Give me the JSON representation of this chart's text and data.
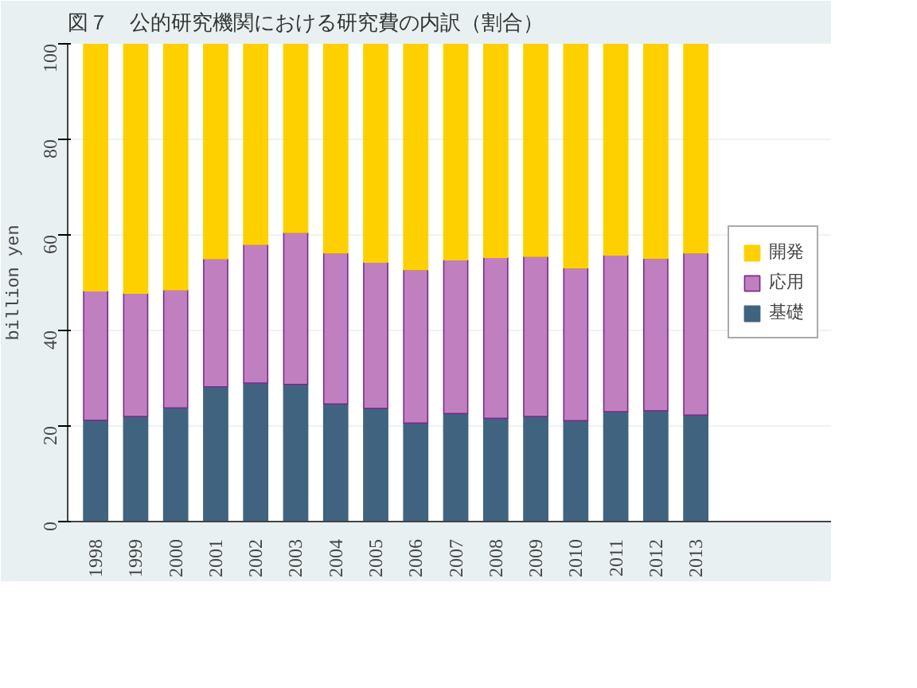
{
  "chart_data": {
    "type": "bar",
    "stacked": true,
    "title": "図７　公的研究機関における研究費の内訳（割合）",
    "ylabel": "billion yen",
    "categories": [
      "1998",
      "1999",
      "2000",
      "2001",
      "2002",
      "2003",
      "2004",
      "2005",
      "2006",
      "2007",
      "2008",
      "2009",
      "2010",
      "2011",
      "2012",
      "2013"
    ],
    "series": [
      {
        "name": "基礎",
        "color": "#406480",
        "values": [
          21.2,
          22.0,
          23.8,
          28.2,
          29.0,
          28.7,
          24.6,
          23.7,
          20.6,
          22.6,
          21.6,
          22.0,
          21.1,
          23.0,
          23.2,
          22.3
        ]
      },
      {
        "name": "応用",
        "color": "#c080c0",
        "values": [
          27.1,
          25.8,
          24.7,
          26.8,
          29.0,
          31.8,
          31.6,
          30.6,
          32.1,
          32.2,
          33.7,
          33.5,
          32.0,
          32.8,
          31.9,
          33.9
        ]
      },
      {
        "name": "開発",
        "color": "#ffd000",
        "values": [
          51.7,
          52.2,
          51.5,
          45.0,
          42.0,
          39.5,
          43.8,
          45.7,
          47.3,
          45.2,
          44.7,
          44.5,
          46.9,
          44.2,
          44.9,
          43.8
        ]
      }
    ],
    "ylim": [
      0,
      100
    ],
    "yticks": [
      0,
      20,
      40,
      60,
      80,
      100
    ],
    "grid": "y",
    "legend": "right"
  }
}
